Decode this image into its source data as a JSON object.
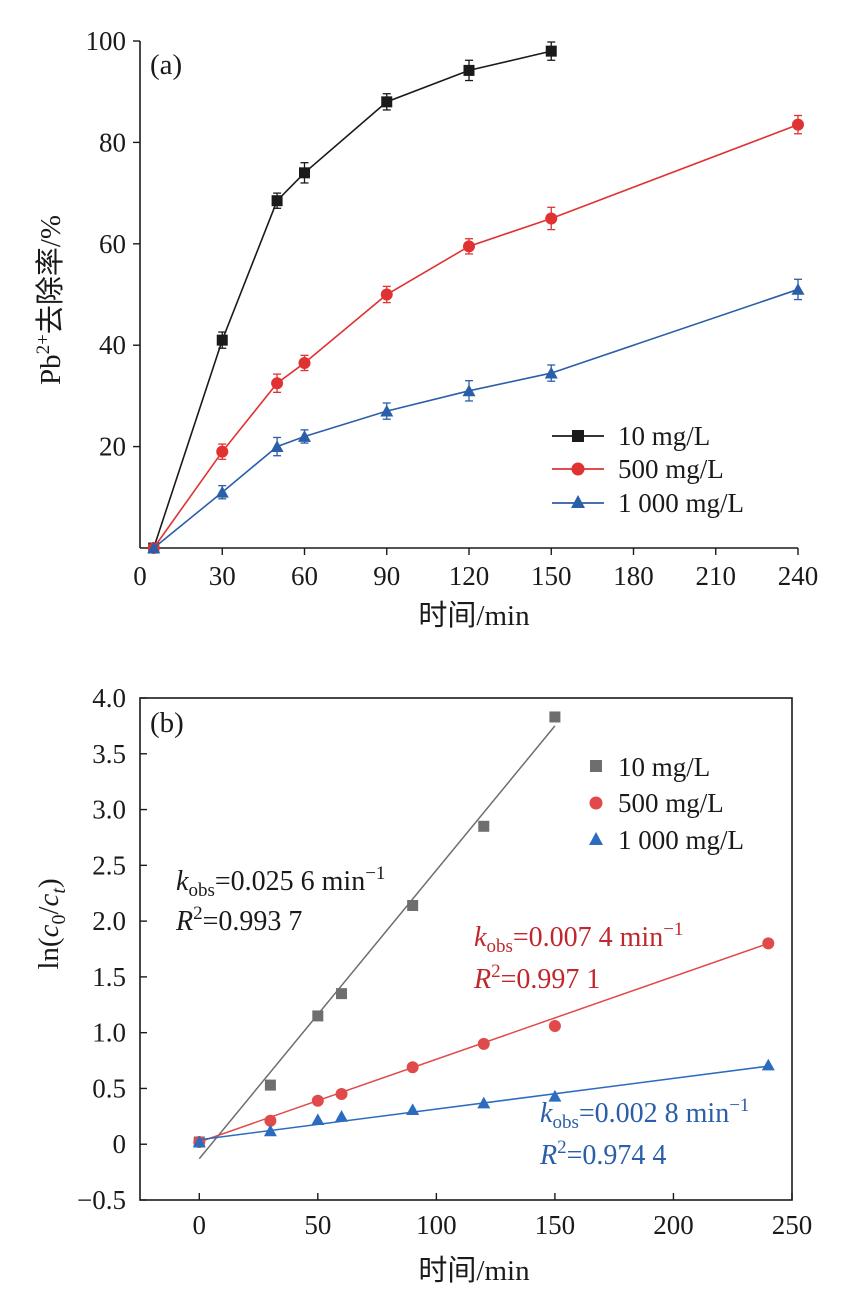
{
  "chart_data": [
    {
      "type": "line",
      "panel_label": "(a)",
      "xlabel": "时间/min",
      "ylabel_main": "Pb",
      "ylabel_sup": "2+",
      "ylabel_rest": "去除率/%",
      "xlim": [
        0,
        240
      ],
      "ylim": [
        0,
        100
      ],
      "xticks": [
        0,
        30,
        60,
        90,
        120,
        150,
        180,
        210,
        240
      ],
      "xtick_labels": [
        "0",
        "30",
        "60",
        "90",
        "120",
        "150",
        "180",
        "210",
        "240"
      ],
      "yticks": [
        20,
        40,
        60,
        80,
        100
      ],
      "ytick_labels": [
        "20",
        "40",
        "60",
        "80",
        "100"
      ],
      "grid": false,
      "legend_position": "bottom-right",
      "series": [
        {
          "name": "10 mg/L",
          "color": "#1a1a1a",
          "marker": "square",
          "x": [
            5,
            30,
            50,
            60,
            90,
            120,
            150
          ],
          "y": [
            0,
            41,
            68.5,
            74,
            88,
            94.2,
            98
          ],
          "err": [
            0,
            1.6,
            1.5,
            2.0,
            1.6,
            2.0,
            1.8
          ]
        },
        {
          "name": "500 mg/L",
          "color": "#e03232",
          "marker": "circle",
          "x": [
            5,
            30,
            50,
            60,
            90,
            120,
            150,
            240
          ],
          "y": [
            0,
            19,
            32.5,
            36.5,
            50,
            59.5,
            65,
            83.5
          ],
          "err": [
            0,
            1.5,
            1.8,
            1.5,
            1.6,
            1.5,
            2.2,
            1.8
          ]
        },
        {
          "name": "1 000 mg/L",
          "color": "#2b5ea8",
          "marker": "triangle",
          "x": [
            5,
            30,
            50,
            60,
            90,
            120,
            150,
            240
          ],
          "y": [
            0,
            11,
            20,
            22,
            27,
            31,
            34.5,
            51
          ],
          "err": [
            0,
            1.3,
            1.8,
            1.3,
            1.6,
            2.0,
            1.6,
            2.0
          ]
        }
      ]
    },
    {
      "type": "scatter",
      "panel_label": "(b)",
      "xlabel": "时间/min",
      "ylabel": "ln(c0/ct)",
      "xlim": [
        -25,
        250
      ],
      "ylim": [
        -0.5,
        4.0
      ],
      "xticks": [
        0,
        50,
        100,
        150,
        200,
        250
      ],
      "xtick_labels": [
        "0",
        "50",
        "100",
        "150",
        "200",
        "250"
      ],
      "yticks": [
        -0.5,
        0,
        0.5,
        1.0,
        1.5,
        2.0,
        2.5,
        3.0,
        3.5,
        4.0
      ],
      "ytick_labels": [
        "−0.5",
        "0",
        "0.5",
        "1.0",
        "1.5",
        "2.0",
        "2.5",
        "3.0",
        "3.5",
        "4.0"
      ],
      "grid": false,
      "legend_position": "top-right",
      "series": [
        {
          "name": "10 mg/L",
          "color": "#6e6e6e",
          "line_color": "#6e6e6e",
          "marker": "square",
          "x": [
            0,
            30,
            50,
            60,
            90,
            120,
            150
          ],
          "y": [
            0.02,
            0.53,
            1.15,
            1.35,
            2.14,
            2.85,
            3.83
          ],
          "fit": {
            "x": [
              0,
              150
            ],
            "y": [
              -0.13,
              3.75
            ]
          }
        },
        {
          "name": "500 mg/L",
          "color": "#e04a4a",
          "line_color": "#e04a4a",
          "marker": "circle",
          "x": [
            0,
            30,
            50,
            60,
            90,
            120,
            150,
            240
          ],
          "y": [
            0.02,
            0.21,
            0.39,
            0.45,
            0.69,
            0.9,
            1.06,
            1.8
          ],
          "fit": {
            "x": [
              0,
              240
            ],
            "y": [
              0.02,
              1.8
            ]
          }
        },
        {
          "name": "1 000 mg/L",
          "color": "#2c6cc0",
          "line_color": "#2c6cc0",
          "marker": "triangle",
          "x": [
            0,
            30,
            50,
            60,
            90,
            120,
            150,
            240
          ],
          "y": [
            0.02,
            0.12,
            0.22,
            0.25,
            0.31,
            0.37,
            0.43,
            0.71
          ],
          "fit": {
            "x": [
              0,
              240
            ],
            "y": [
              0.04,
              0.7
            ]
          }
        }
      ],
      "annotations": [
        {
          "color": "#1a1a1a",
          "k_sym": "k",
          "k_sub": "obs",
          "k_val": "=0.025 6 min",
          "k_sup": "−1",
          "r_sym": "R",
          "r_sup": "2",
          "r_val": "=0.993 7"
        },
        {
          "color": "#c0282d",
          "k_sym": "k",
          "k_sub": "obs",
          "k_val": "=0.007 4 min",
          "k_sup": "−1",
          "r_sym": "R",
          "r_sup": "2",
          "r_val": "=0.997 1"
        },
        {
          "color": "#2b5ea8",
          "k_sym": "k",
          "k_sub": "obs",
          "k_val": "=0.002 8 min",
          "k_sup": "−1",
          "r_sym": "R",
          "r_sup": "2",
          "r_val": "=0.974 4"
        }
      ]
    }
  ]
}
